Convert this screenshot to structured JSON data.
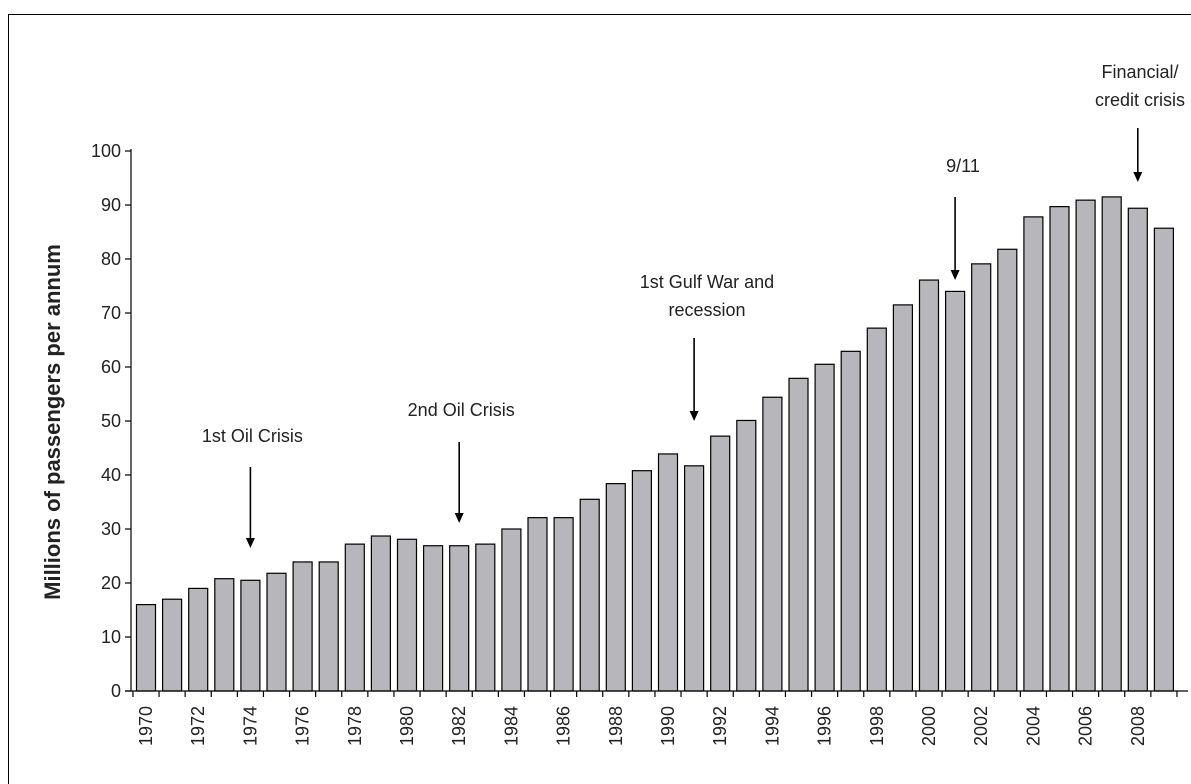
{
  "chart_data": {
    "type": "bar",
    "title": "",
    "xlabel": "",
    "ylabel": "Millions of passengers per annum",
    "ylim": [
      0,
      100
    ],
    "yticks": [
      0,
      10,
      20,
      30,
      40,
      50,
      60,
      70,
      80,
      90,
      100
    ],
    "grid": false,
    "categories": [
      1970,
      1971,
      1972,
      1973,
      1974,
      1975,
      1976,
      1977,
      1978,
      1979,
      1980,
      1981,
      1982,
      1983,
      1984,
      1985,
      1986,
      1987,
      1988,
      1989,
      1990,
      1991,
      1992,
      1993,
      1994,
      1995,
      1996,
      1997,
      1998,
      1999,
      2000,
      2001,
      2002,
      2003,
      2004,
      2005,
      2006,
      2007,
      2008,
      2009
    ],
    "xtick_labels": [
      "1970",
      "1972",
      "1974",
      "1976",
      "1978",
      "1980",
      "1982",
      "1984",
      "1986",
      "1988",
      "1990",
      "1992",
      "1994",
      "1996",
      "1998",
      "2000",
      "2002",
      "2004",
      "2006",
      "2008"
    ],
    "values": [
      16.0,
      17.0,
      19.0,
      20.8,
      20.5,
      21.8,
      23.9,
      23.9,
      27.2,
      28.7,
      28.1,
      26.9,
      26.9,
      27.2,
      30.0,
      32.1,
      32.1,
      35.5,
      38.4,
      40.8,
      43.9,
      41.7,
      47.2,
      50.1,
      54.4,
      57.9,
      60.5,
      62.9,
      67.2,
      71.5,
      76.1,
      74.0,
      79.1,
      81.8,
      87.8,
      89.7,
      90.9,
      91.5,
      89.4,
      85.7
    ],
    "bar_color": "#b7b7bb",
    "annotations": [
      {
        "lines": [
          "1st Oil Crisis"
        ],
        "year": 1974
      },
      {
        "lines": [
          "2nd Oil Crisis"
        ],
        "year": 1982
      },
      {
        "lines": [
          "1st Gulf War and",
          "recession"
        ],
        "year": 1991
      },
      {
        "lines": [
          "9/11"
        ],
        "year": 2001
      },
      {
        "lines": [
          "Financial/",
          "credit crisis"
        ],
        "year": 2008
      }
    ]
  }
}
